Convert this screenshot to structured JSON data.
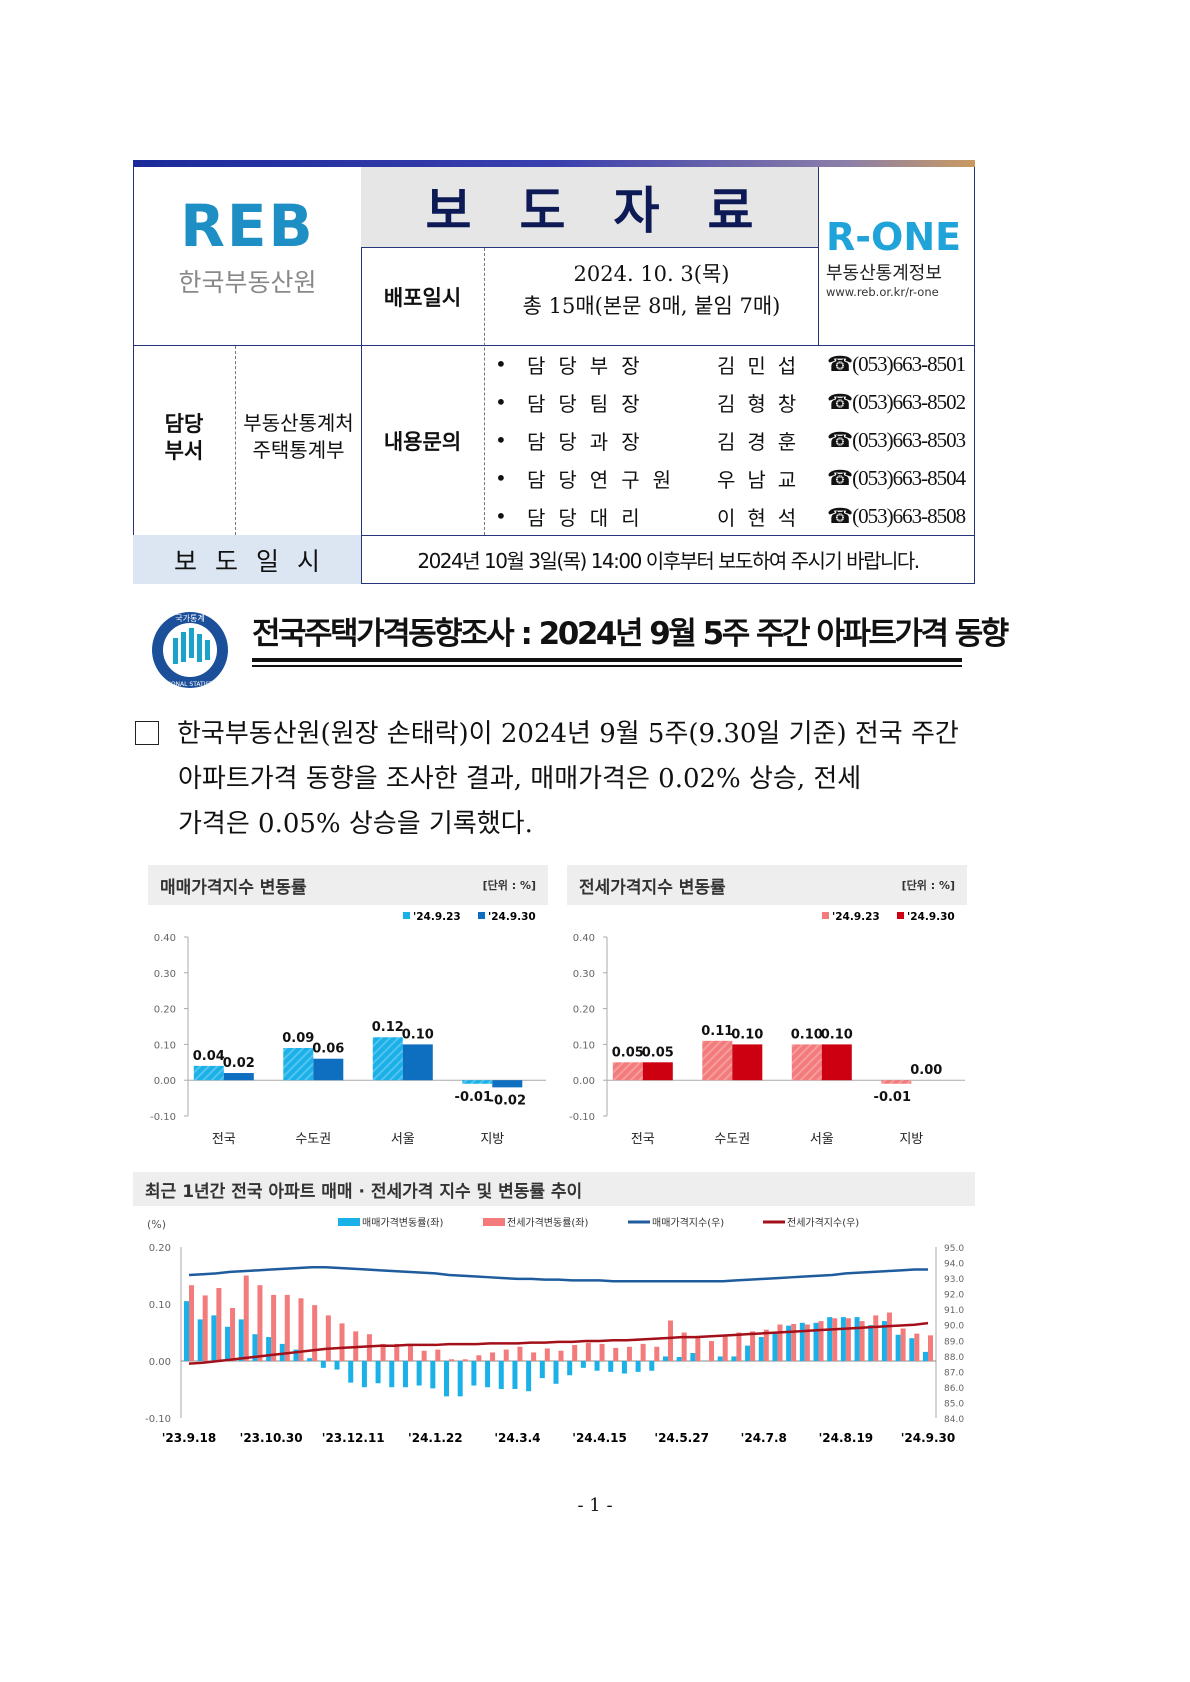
{
  "header": {
    "org_logo_text": "REB",
    "org_name": "한국부동산원",
    "title": "보도자료",
    "distribution_label": "배포일시",
    "distribution_date": "2024. 10. 3(목)",
    "page_count": "총 15매(본문 8매, 붙임 7매)",
    "rone_logo_text": "R-ONE",
    "rone_subtitle": "부동산통계정보",
    "rone_url": "www.reb.or.kr/r-one"
  },
  "dept": {
    "label_line1": "담당",
    "label_line2": "부서",
    "name_line1": "부동산통계처",
    "name_line2": "주택통계부",
    "inquiry_label": "내용문의",
    "contacts": [
      {
        "role": "담당부장",
        "name": "김민섭",
        "phone": "☎(053)663-8501"
      },
      {
        "role": "담당팀장",
        "name": "김형창",
        "phone": "☎(053)663-8502"
      },
      {
        "role": "담당과장",
        "name": "김경훈",
        "phone": "☎(053)663-8503"
      },
      {
        "role": "담당연구원",
        "name": "우남교",
        "phone": "☎(053)663-8504"
      },
      {
        "role": "담당대리",
        "name": "이현석",
        "phone": "☎(053)663-8508"
      }
    ]
  },
  "press": {
    "label": "보도일시",
    "note": "2024년 10월 3일(목) 14:00 이후부터 보도하여 주시기 바랍니다."
  },
  "stats_logo": {
    "top": "국가통계",
    "bottom": "NATIONAL STATISTICS"
  },
  "headline": "전국주택가격동향조사 : 2024년 9월 5주 주간 아파트가격 동향",
  "paragraph": {
    "line1": "한국부동산원(원장 손태락)이 2024년 9월 5주(9.30일 기준) 전국 주간",
    "line2": "아파트가격 동향을 조사한 결과, 매매가격은 0.02% 상승, 전세",
    "line3": "가격은 0.05% 상승을 기록했다."
  },
  "page_number": "- 1 -",
  "colors": {
    "sale_prev": "#1ab0e8",
    "sale_curr": "#0e6fc0",
    "jeonse_prev": "#f37b7b",
    "jeonse_curr": "#cc0010",
    "sale_index": "#1f5c9e",
    "jeonse_index": "#a3101a",
    "navy": "#26357a"
  },
  "chart_data": [
    {
      "type": "bar",
      "title": "매매가격지수 변동률",
      "unit": "[단위 : %]",
      "categories": [
        "전국",
        "수도권",
        "서울",
        "지방"
      ],
      "ylim": [
        -0.1,
        0.4
      ],
      "yticks": [
        "0.40",
        "0.30",
        "0.20",
        "0.10",
        "0.00",
        "-0.10"
      ],
      "legend": "top-right",
      "series": [
        {
          "name": "'24.9.23",
          "values": [
            0.04,
            0.09,
            0.12,
            -0.01
          ]
        },
        {
          "name": "'24.9.30",
          "values": [
            0.02,
            0.06,
            0.1,
            -0.02
          ]
        }
      ]
    },
    {
      "type": "bar",
      "title": "전세가격지수 변동률",
      "unit": "[단위 : %]",
      "categories": [
        "전국",
        "수도권",
        "서울",
        "지방"
      ],
      "ylim": [
        -0.1,
        0.4
      ],
      "yticks": [
        "0.40",
        "0.30",
        "0.20",
        "0.10",
        "0.00",
        "-0.10"
      ],
      "legend": "top-right",
      "series": [
        {
          "name": "'24.9.23",
          "values": [
            0.05,
            0.11,
            0.1,
            -0.01
          ]
        },
        {
          "name": "'24.9.30",
          "values": [
            0.05,
            0.1,
            0.1,
            0.0
          ]
        }
      ]
    },
    {
      "type": "bar+line",
      "title": "최근 1년간 전국 아파트 매매 · 전세가격 지수 및 변동률 추이",
      "ylabel": "(%)",
      "ylim": [
        -0.1,
        0.2
      ],
      "yticks": [
        "0.20",
        "0.10",
        "0.00",
        "-0.10"
      ],
      "y2lim": [
        84.0,
        95.0
      ],
      "y2ticks": [
        "95.0",
        "94.0",
        "93.0",
        "92.0",
        "91.0",
        "90.0",
        "89.0",
        "88.0",
        "87.0",
        "86.0",
        "85.0",
        "84.0"
      ],
      "legend": "top",
      "xticks": [
        "'23.9.18",
        "'23.10.30",
        "'23.12.11",
        "'24.1.22",
        "'24.3.4",
        "'24.4.15",
        "'24.5.27",
        "'24.7.8",
        "'24.8.19",
        "'24.9.30"
      ],
      "series": [
        {
          "name": "매매가격변동률(좌)",
          "axis": "left",
          "kind": "bar",
          "values": [
            0.105,
            0.073,
            0.08,
            0.06,
            0.073,
            0.047,
            0.042,
            0.03,
            0.02,
            0.005,
            -0.012,
            -0.015,
            -0.038,
            -0.046,
            -0.039,
            -0.046,
            -0.046,
            -0.043,
            -0.048,
            -0.062,
            -0.062,
            -0.043,
            -0.046,
            -0.049,
            -0.049,
            -0.053,
            -0.03,
            -0.04,
            -0.025,
            -0.012,
            -0.017,
            -0.019,
            -0.022,
            -0.019,
            -0.017,
            0.008,
            0.007,
            0.014,
            0.0,
            0.008,
            0.008,
            0.027,
            0.042,
            0.05,
            0.062,
            0.067,
            0.067,
            0.077,
            0.077,
            0.077,
            0.063,
            0.07,
            0.046,
            0.04,
            0.016
          ]
        },
        {
          "name": "전세가격변동률(좌)",
          "axis": "left",
          "kind": "bar",
          "values": [
            0.133,
            0.115,
            0.128,
            0.093,
            0.15,
            0.133,
            0.116,
            0.116,
            0.11,
            0.098,
            0.08,
            0.066,
            0.052,
            0.047,
            0.03,
            0.03,
            0.03,
            0.018,
            0.02,
            0.003,
            0.003,
            0.01,
            0.015,
            0.02,
            0.025,
            0.015,
            0.022,
            0.018,
            0.028,
            0.032,
            0.03,
            0.023,
            0.025,
            0.03,
            0.025,
            0.071,
            0.05,
            0.042,
            0.035,
            0.045,
            0.05,
            0.052,
            0.055,
            0.064,
            0.065,
            0.064,
            0.07,
            0.075,
            0.075,
            0.07,
            0.08,
            0.085,
            0.057,
            0.048,
            0.045
          ]
        },
        {
          "name": "매매가격지수(우)",
          "axis": "right",
          "kind": "line",
          "values": [
            93.2,
            93.25,
            93.3,
            93.4,
            93.45,
            93.5,
            93.55,
            93.6,
            93.65,
            93.7,
            93.7,
            93.65,
            93.6,
            93.55,
            93.5,
            93.45,
            93.4,
            93.35,
            93.3,
            93.2,
            93.15,
            93.1,
            93.05,
            93.0,
            92.95,
            92.95,
            92.9,
            92.9,
            92.85,
            92.85,
            92.85,
            92.8,
            92.8,
            92.8,
            92.8,
            92.8,
            92.8,
            92.8,
            92.8,
            92.8,
            92.85,
            92.9,
            92.95,
            93.0,
            93.05,
            93.1,
            93.15,
            93.2,
            93.3,
            93.35,
            93.4,
            93.45,
            93.5,
            93.55,
            93.55
          ]
        },
        {
          "name": "전세가격지수(우)",
          "axis": "right",
          "kind": "line",
          "values": [
            87.5,
            87.55,
            87.65,
            87.75,
            87.85,
            87.95,
            88.05,
            88.15,
            88.25,
            88.35,
            88.45,
            88.5,
            88.55,
            88.6,
            88.65,
            88.65,
            88.7,
            88.7,
            88.7,
            88.75,
            88.75,
            88.75,
            88.8,
            88.8,
            88.8,
            88.85,
            88.85,
            88.9,
            88.9,
            88.95,
            88.95,
            89.0,
            89.0,
            89.05,
            89.1,
            89.15,
            89.2,
            89.2,
            89.25,
            89.3,
            89.35,
            89.4,
            89.45,
            89.5,
            89.55,
            89.6,
            89.65,
            89.7,
            89.75,
            89.8,
            89.85,
            89.9,
            89.95,
            90.0,
            90.1
          ]
        }
      ]
    }
  ]
}
